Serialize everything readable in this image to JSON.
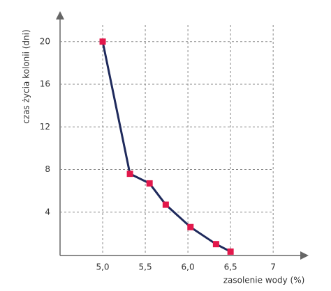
{
  "chart_data": {
    "type": "line",
    "x_label": "zasolenie wody (%)",
    "y_label": "czas życia kolonii (dni)",
    "x": [
      5.0,
      5.32,
      5.55,
      5.74,
      6.03,
      6.33,
      6.5
    ],
    "series": [
      {
        "color": "#1f2a5c",
        "marker_color": "#e2184b",
        "values": [
          20,
          7.6,
          6.7,
          4.7,
          2.6,
          1.0,
          0.3
        ]
      }
    ],
    "xlim": [
      4.5,
      7.4
    ],
    "ylim": [
      0,
      22.6
    ],
    "xticks": [
      {
        "value": 5,
        "label": "5,0"
      },
      {
        "value": 5.5,
        "label": "5,5"
      },
      {
        "value": 6,
        "label": "6,0"
      },
      {
        "value": 6.5,
        "label": "6,5"
      },
      7
    ],
    "yticks": [
      4,
      8,
      12,
      16,
      20
    ],
    "grid": true
  }
}
